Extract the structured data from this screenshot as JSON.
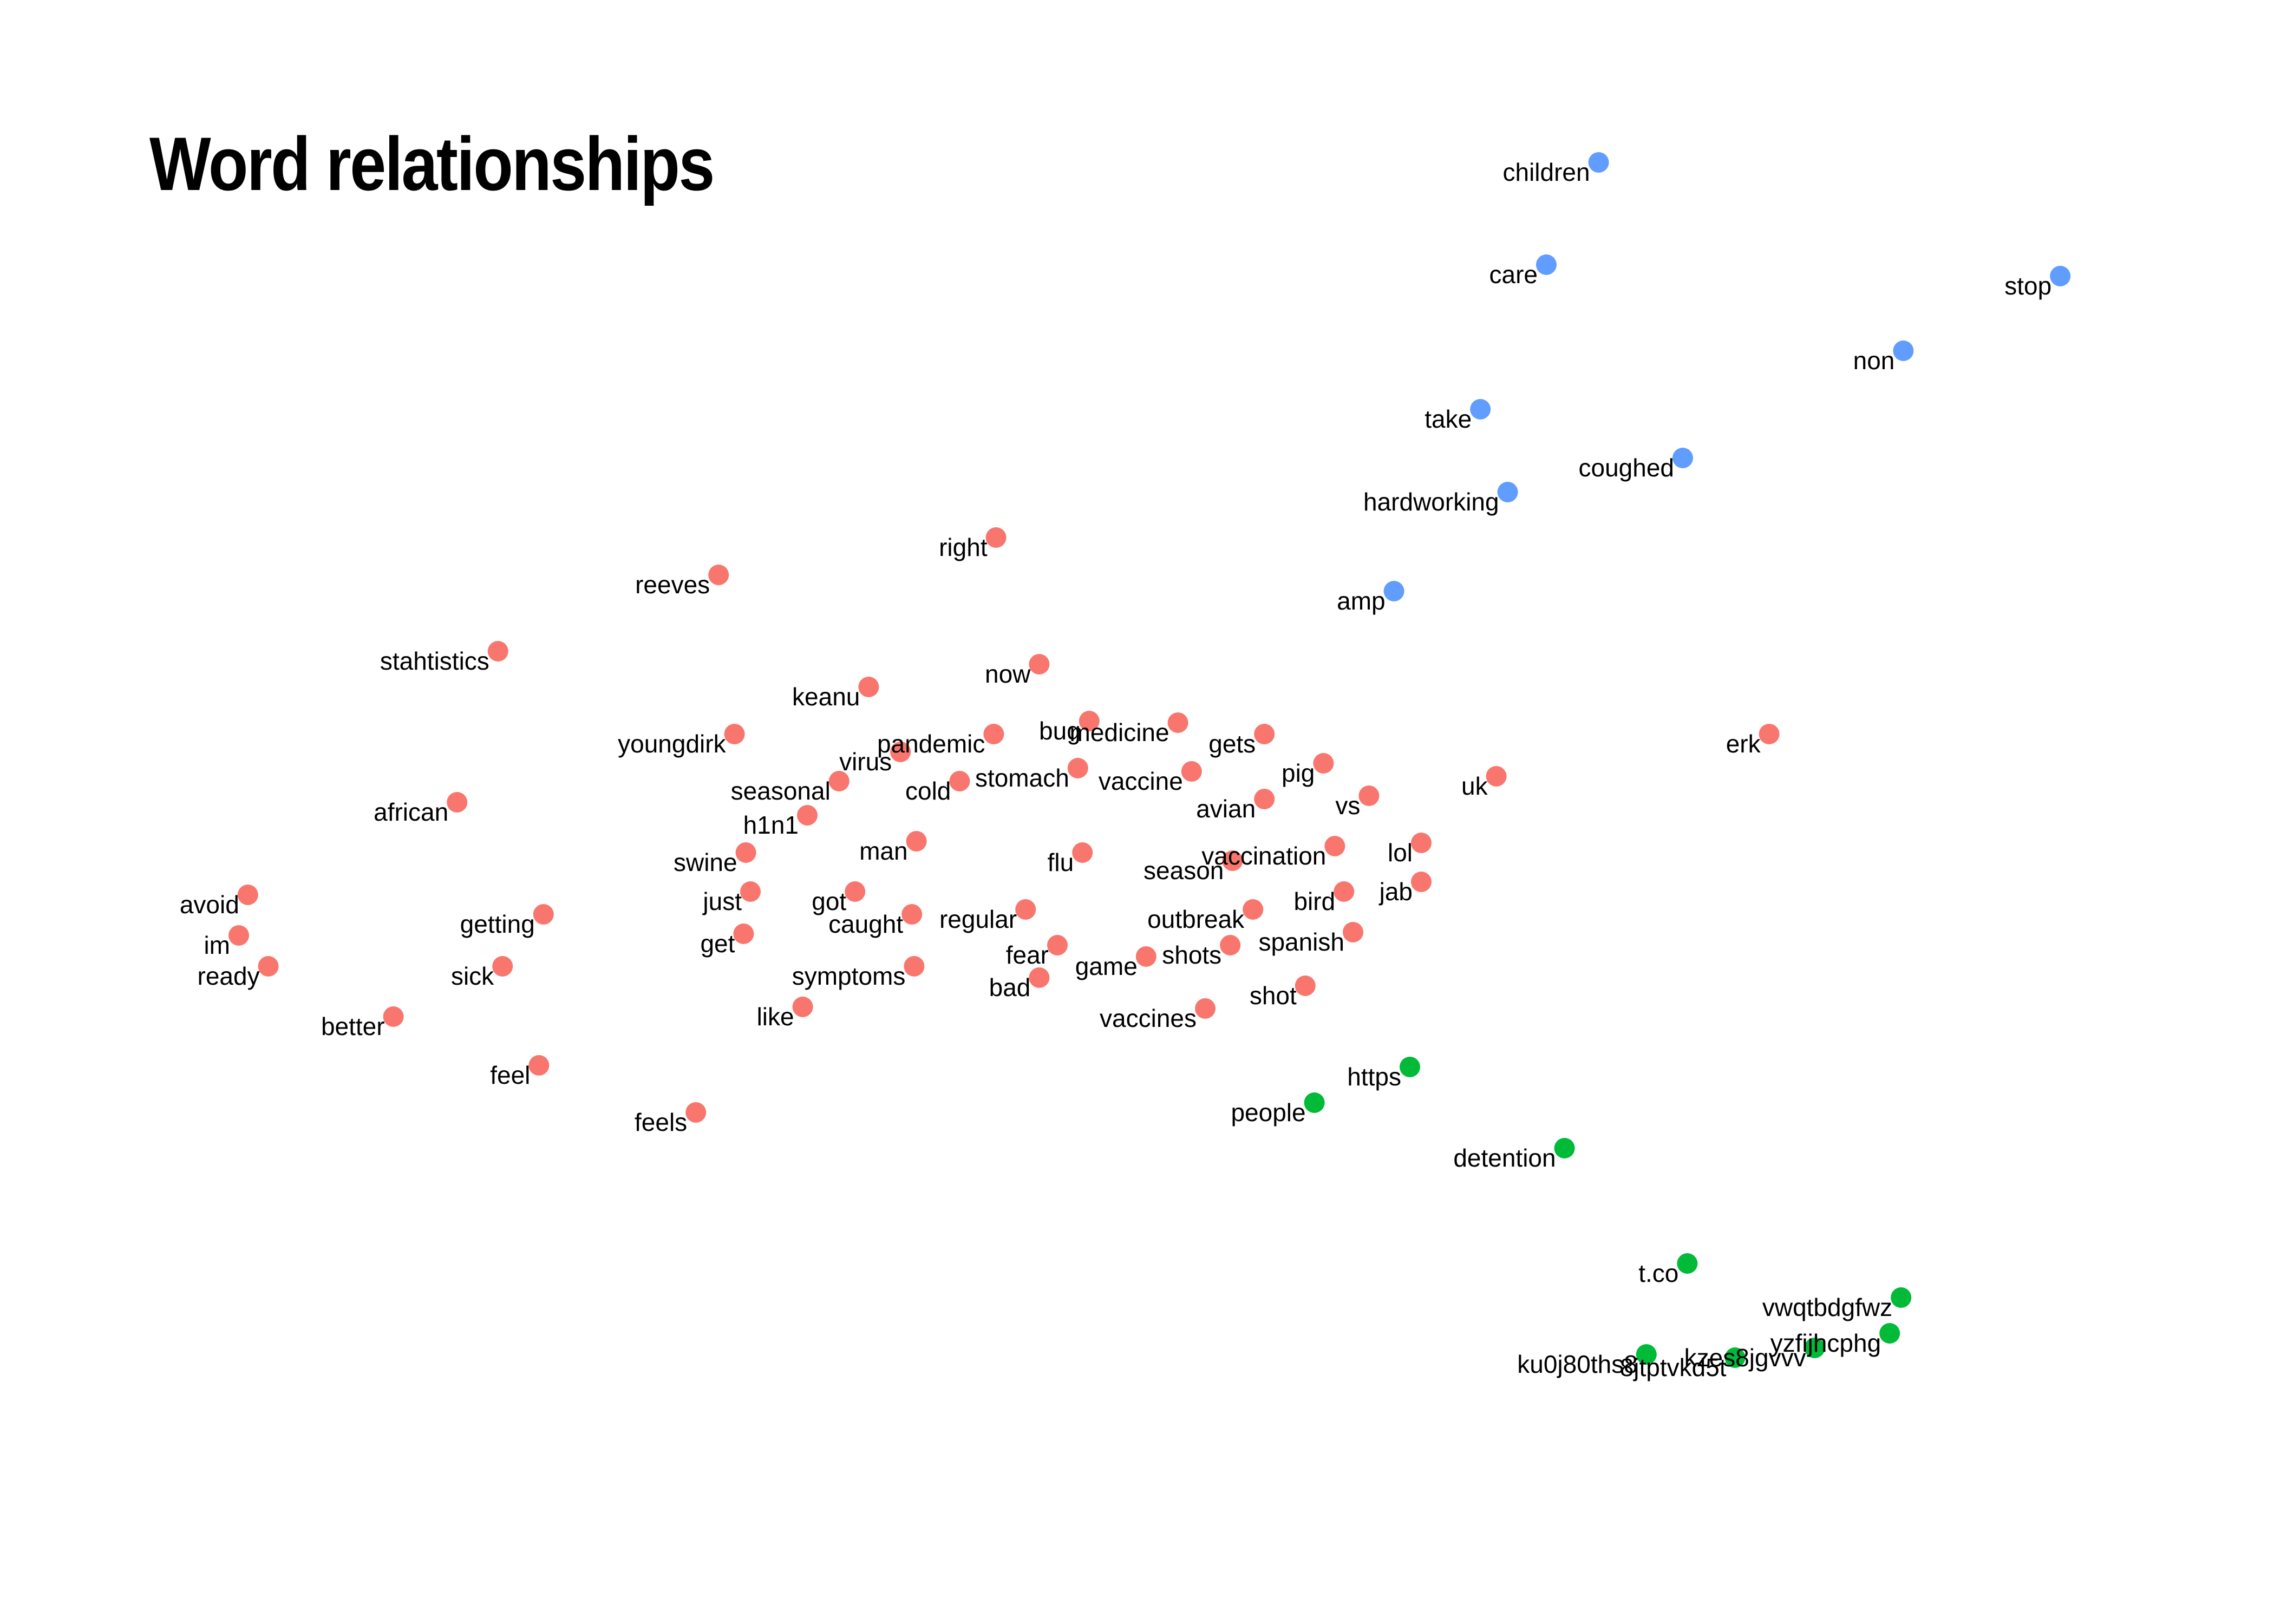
{
  "chart_data": {
    "type": "scatter",
    "title": "Word relationships",
    "xlabel": "",
    "ylabel": "",
    "xlim": [
      0,
      1
    ],
    "ylim": [
      0,
      1
    ],
    "grid": false,
    "legend": "none",
    "cluster_colors": {
      "red": "#F8766D",
      "blue": "#619CFF",
      "green": "#00BA38"
    },
    "points": [
      {
        "word": "children",
        "x": 0.703,
        "y": 0.9,
        "cluster": "blue"
      },
      {
        "word": "care",
        "x": 0.68,
        "y": 0.837,
        "cluster": "blue"
      },
      {
        "word": "stop",
        "x": 0.906,
        "y": 0.83,
        "cluster": "blue"
      },
      {
        "word": "non",
        "x": 0.837,
        "y": 0.784,
        "cluster": "blue"
      },
      {
        "word": "take",
        "x": 0.651,
        "y": 0.748,
        "cluster": "blue"
      },
      {
        "word": "coughed",
        "x": 0.74,
        "y": 0.718,
        "cluster": "blue"
      },
      {
        "word": "hardworking",
        "x": 0.663,
        "y": 0.697,
        "cluster": "blue"
      },
      {
        "word": "amp",
        "x": 0.613,
        "y": 0.636,
        "cluster": "blue"
      },
      {
        "word": "right",
        "x": 0.438,
        "y": 0.669,
        "cluster": "red"
      },
      {
        "word": "reeves",
        "x": 0.316,
        "y": 0.646,
        "cluster": "red"
      },
      {
        "word": "stahtistics",
        "x": 0.219,
        "y": 0.599,
        "cluster": "red"
      },
      {
        "word": "now",
        "x": 0.457,
        "y": 0.591,
        "cluster": "red"
      },
      {
        "word": "keanu",
        "x": 0.382,
        "y": 0.577,
        "cluster": "red"
      },
      {
        "word": "youngdirk",
        "x": 0.323,
        "y": 0.548,
        "cluster": "red"
      },
      {
        "word": "pandemic",
        "x": 0.437,
        "y": 0.548,
        "cluster": "red"
      },
      {
        "word": "bug",
        "x": 0.479,
        "y": 0.556,
        "cluster": "red"
      },
      {
        "word": "medicine",
        "x": 0.518,
        "y": 0.555,
        "cluster": "red"
      },
      {
        "word": "gets",
        "x": 0.556,
        "y": 0.548,
        "cluster": "red"
      },
      {
        "word": "erk",
        "x": 0.778,
        "y": 0.548,
        "cluster": "red"
      },
      {
        "word": "virus",
        "x": 0.396,
        "y": 0.537,
        "cluster": "red"
      },
      {
        "word": "pig",
        "x": 0.582,
        "y": 0.53,
        "cluster": "red"
      },
      {
        "word": "stomach",
        "x": 0.474,
        "y": 0.527,
        "cluster": "red"
      },
      {
        "word": "vaccine",
        "x": 0.524,
        "y": 0.525,
        "cluster": "red"
      },
      {
        "word": "uk",
        "x": 0.658,
        "y": 0.522,
        "cluster": "red"
      },
      {
        "word": "seasonal",
        "x": 0.369,
        "y": 0.519,
        "cluster": "red"
      },
      {
        "word": "cold",
        "x": 0.422,
        "y": 0.519,
        "cluster": "red"
      },
      {
        "word": "avian",
        "x": 0.556,
        "y": 0.508,
        "cluster": "red"
      },
      {
        "word": "vs",
        "x": 0.602,
        "y": 0.51,
        "cluster": "red"
      },
      {
        "word": "african",
        "x": 0.201,
        "y": 0.506,
        "cluster": "red"
      },
      {
        "word": "h1n1",
        "x": 0.355,
        "y": 0.498,
        "cluster": "red"
      },
      {
        "word": "man",
        "x": 0.403,
        "y": 0.482,
        "cluster": "red"
      },
      {
        "word": "vaccination",
        "x": 0.587,
        "y": 0.479,
        "cluster": "red"
      },
      {
        "word": "lol",
        "x": 0.625,
        "y": 0.481,
        "cluster": "red"
      },
      {
        "word": "swine",
        "x": 0.328,
        "y": 0.475,
        "cluster": "red"
      },
      {
        "word": "flu",
        "x": 0.476,
        "y": 0.475,
        "cluster": "red"
      },
      {
        "word": "season",
        "x": 0.542,
        "y": 0.47,
        "cluster": "red"
      },
      {
        "word": "jab",
        "x": 0.625,
        "y": 0.457,
        "cluster": "red"
      },
      {
        "word": "avoid",
        "x": 0.109,
        "y": 0.449,
        "cluster": "red"
      },
      {
        "word": "just",
        "x": 0.33,
        "y": 0.451,
        "cluster": "red"
      },
      {
        "word": "got",
        "x": 0.376,
        "y": 0.451,
        "cluster": "red"
      },
      {
        "word": "bird",
        "x": 0.591,
        "y": 0.451,
        "cluster": "red"
      },
      {
        "word": "regular",
        "x": 0.451,
        "y": 0.44,
        "cluster": "red"
      },
      {
        "word": "outbreak",
        "x": 0.551,
        "y": 0.44,
        "cluster": "red"
      },
      {
        "word": "caught",
        "x": 0.401,
        "y": 0.437,
        "cluster": "red"
      },
      {
        "word": "getting",
        "x": 0.239,
        "y": 0.437,
        "cluster": "red"
      },
      {
        "word": "spanish",
        "x": 0.595,
        "y": 0.426,
        "cluster": "red"
      },
      {
        "word": "im",
        "x": 0.105,
        "y": 0.424,
        "cluster": "red"
      },
      {
        "word": "get",
        "x": 0.327,
        "y": 0.425,
        "cluster": "red"
      },
      {
        "word": "fear",
        "x": 0.465,
        "y": 0.418,
        "cluster": "red"
      },
      {
        "word": "shots",
        "x": 0.541,
        "y": 0.418,
        "cluster": "red"
      },
      {
        "word": "game",
        "x": 0.504,
        "y": 0.411,
        "cluster": "red"
      },
      {
        "word": "ready",
        "x": 0.118,
        "y": 0.405,
        "cluster": "red"
      },
      {
        "word": "sick",
        "x": 0.221,
        "y": 0.405,
        "cluster": "red"
      },
      {
        "word": "symptoms",
        "x": 0.402,
        "y": 0.405,
        "cluster": "red"
      },
      {
        "word": "bad",
        "x": 0.457,
        "y": 0.398,
        "cluster": "red"
      },
      {
        "word": "shot",
        "x": 0.574,
        "y": 0.393,
        "cluster": "red"
      },
      {
        "word": "like",
        "x": 0.353,
        "y": 0.38,
        "cluster": "red"
      },
      {
        "word": "vaccines",
        "x": 0.53,
        "y": 0.379,
        "cluster": "red"
      },
      {
        "word": "better",
        "x": 0.173,
        "y": 0.374,
        "cluster": "red"
      },
      {
        "word": "feel",
        "x": 0.237,
        "y": 0.344,
        "cluster": "red"
      },
      {
        "word": "feels",
        "x": 0.306,
        "y": 0.315,
        "cluster": "red"
      },
      {
        "word": "https",
        "x": 0.62,
        "y": 0.343,
        "cluster": "green"
      },
      {
        "word": "people",
        "x": 0.578,
        "y": 0.321,
        "cluster": "green"
      },
      {
        "word": "detention",
        "x": 0.688,
        "y": 0.293,
        "cluster": "green"
      },
      {
        "word": "t.co",
        "x": 0.742,
        "y": 0.222,
        "cluster": "green"
      },
      {
        "word": "vwqtbdgfwz",
        "x": 0.836,
        "y": 0.201,
        "cluster": "green"
      },
      {
        "word": "yzfijhcphg",
        "x": 0.831,
        "y": 0.179,
        "cluster": "green"
      },
      {
        "word": "kzes8jgvvv",
        "x": 0.798,
        "y": 0.17,
        "cluster": "green"
      },
      {
        "word": "8jtptvkd5t",
        "x": 0.763,
        "y": 0.164,
        "cluster": "green"
      },
      {
        "word": "ku0j80ths8",
        "x": 0.724,
        "y": 0.166,
        "cluster": "green"
      }
    ]
  }
}
